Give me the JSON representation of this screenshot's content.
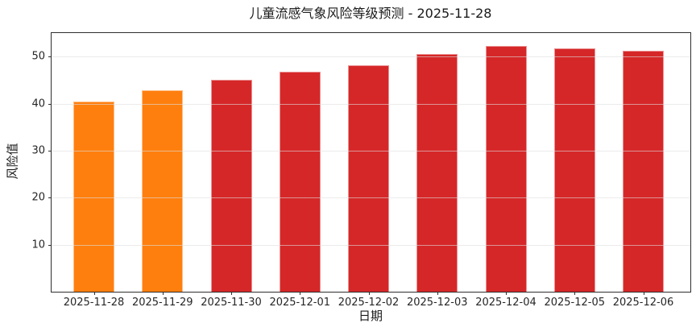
{
  "chart_data": {
    "type": "bar",
    "title": "儿童流感气象风险等级预测 - 2025-11-28",
    "xlabel": "日期",
    "ylabel": "风险值",
    "categories": [
      "2025-11-28",
      "2025-11-29",
      "2025-11-30",
      "2025-12-01",
      "2025-12-02",
      "2025-12-03",
      "2025-12-04",
      "2025-12-05",
      "2025-12-06"
    ],
    "values": [
      40.5,
      42.8,
      45.1,
      46.7,
      48.1,
      50.5,
      52.3,
      51.8,
      51.3
    ],
    "bar_colors": [
      "#ff7f0e",
      "#ff7f0e",
      "#d62728",
      "#d62728",
      "#d62728",
      "#d62728",
      "#d62728",
      "#d62728",
      "#d62728"
    ],
    "yticks": [
      10,
      20,
      30,
      40,
      50
    ],
    "ylim": [
      0,
      55
    ],
    "grid": true,
    "legend": false,
    "colors": {
      "orange_bar": "#ff7f0e",
      "red_bar": "#d62728",
      "gridline": "#dddddd",
      "axis": "#2e2e2e",
      "text": "#262626",
      "background": "#ffffff"
    }
  }
}
